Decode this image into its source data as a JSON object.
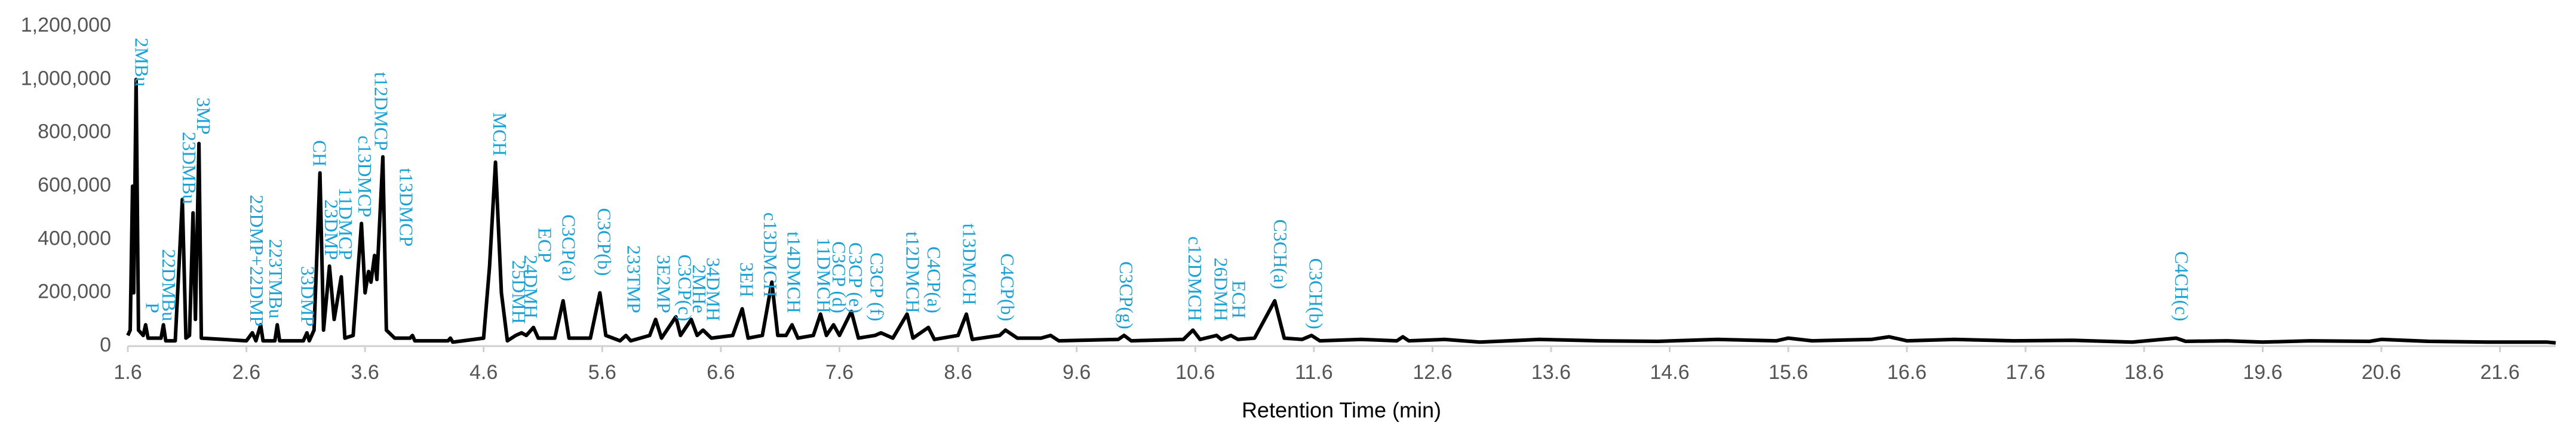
{
  "chart_data": {
    "type": "line",
    "x_label": "Retention Time (min)",
    "x": [
      1.6,
      1.62,
      1.64,
      1.65,
      1.67,
      1.69,
      1.73,
      1.75,
      1.77,
      1.88,
      1.9,
      1.92,
      2.0,
      2.06,
      2.09,
      2.12,
      2.15,
      2.17,
      2.2,
      2.22,
      2.6,
      2.65,
      2.68,
      2.72,
      2.74,
      2.84,
      2.86,
      2.88,
      3.08,
      3.11,
      3.13,
      3.17,
      3.22,
      3.25,
      3.3,
      3.34,
      3.4,
      3.43,
      3.5,
      3.57,
      3.6,
      3.63,
      3.65,
      3.68,
      3.7,
      3.75,
      3.78,
      3.85,
      3.98,
      4.0,
      4.02,
      4.3,
      4.32,
      4.34,
      4.6,
      4.65,
      4.7,
      4.75,
      4.8,
      4.87,
      4.92,
      4.96,
      5.02,
      5.06,
      5.2,
      5.27,
      5.32,
      5.5,
      5.58,
      5.63,
      5.75,
      5.8,
      5.84,
      6.0,
      6.05,
      6.1,
      6.22,
      6.26,
      6.35,
      6.4,
      6.45,
      6.52,
      6.7,
      6.78,
      6.83,
      6.95,
      7.03,
      7.08,
      7.15,
      7.2,
      7.25,
      7.38,
      7.44,
      7.49,
      7.55,
      7.6,
      7.7,
      7.76,
      7.9,
      7.95,
      8.05,
      8.17,
      8.22,
      8.35,
      8.4,
      8.6,
      8.67,
      8.72,
      8.95,
      9.0,
      9.1,
      9.3,
      9.38,
      9.45,
      9.95,
      10.0,
      10.06,
      10.5,
      10.58,
      10.64,
      10.78,
      10.82,
      10.9,
      10.96,
      11.1,
      11.27,
      11.35,
      11.5,
      11.58,
      11.65,
      12.0,
      12.3,
      12.35,
      12.4,
      12.7,
      13.0,
      13.5,
      14.0,
      14.5,
      15.0,
      15.5,
      15.6,
      15.8,
      16.3,
      16.45,
      16.6,
      17.0,
      17.5,
      18.0,
      18.5,
      18.87,
      18.95,
      19.3,
      19.6,
      20.0,
      20.5,
      20.6,
      21.0,
      21.5,
      22.0,
      22.07
    ],
    "series": [
      {
        "color": "#000000",
        "values": [
          40000,
          60000,
          600000,
          200000,
          1000000,
          60000,
          40000,
          80000,
          30000,
          30000,
          80000,
          20000,
          20000,
          550000,
          30000,
          40000,
          500000,
          100000,
          760000,
          30000,
          20000,
          50000,
          20000,
          80000,
          20000,
          20000,
          80000,
          20000,
          20000,
          50000,
          20000,
          60000,
          650000,
          60000,
          300000,
          100000,
          260000,
          30000,
          40000,
          460000,
          200000,
          280000,
          240000,
          340000,
          250000,
          710000,
          60000,
          30000,
          30000,
          40000,
          20000,
          20000,
          30000,
          15000,
          30000,
          300000,
          690000,
          200000,
          20000,
          40000,
          50000,
          40000,
          70000,
          30000,
          30000,
          170000,
          30000,
          30000,
          200000,
          40000,
          20000,
          40000,
          20000,
          40000,
          100000,
          30000,
          110000,
          40000,
          100000,
          40000,
          60000,
          30000,
          40000,
          140000,
          30000,
          40000,
          240000,
          40000,
          40000,
          80000,
          30000,
          40000,
          120000,
          40000,
          80000,
          40000,
          130000,
          30000,
          40000,
          50000,
          30000,
          120000,
          30000,
          70000,
          25000,
          40000,
          120000,
          25000,
          40000,
          60000,
          30000,
          30000,
          40000,
          20000,
          25000,
          40000,
          20000,
          25000,
          60000,
          25000,
          40000,
          25000,
          40000,
          25000,
          30000,
          170000,
          30000,
          25000,
          40000,
          20000,
          25000,
          20000,
          35000,
          20000,
          25000,
          15000,
          25000,
          20000,
          18000,
          25000,
          20000,
          30000,
          20000,
          25000,
          35000,
          20000,
          25000,
          20000,
          22000,
          15000,
          30000,
          18000,
          20000,
          15000,
          20000,
          18000,
          25000,
          18000,
          15000,
          15000,
          12000
        ]
      }
    ],
    "xlim": [
      1.6,
      22.07
    ],
    "xticks": [
      1.6,
      2.6,
      3.6,
      4.6,
      5.6,
      6.6,
      7.6,
      8.6,
      9.6,
      10.6,
      11.6,
      12.6,
      13.6,
      14.6,
      15.6,
      16.6,
      17.6,
      18.6,
      19.6,
      20.6,
      21.6
    ],
    "ylim": [
      0,
      1200000
    ],
    "yticks": [
      0,
      {
        "value": 200000,
        "label": "200,000"
      },
      {
        "value": 400000,
        "label": "400,000"
      },
      {
        "value": 600000,
        "label": "600,000"
      },
      {
        "value": 800000,
        "label": "800,000"
      },
      {
        "value": 1000000,
        "label": "1,000,000"
      },
      {
        "value": 1200000,
        "label": "1,200,000"
      }
    ],
    "annotation_color": "#1ba1d4",
    "annotations": [
      {
        "label": "2MBu",
        "x": 1.7,
        "y": 960000
      },
      {
        "label": "P",
        "x": 1.79,
        "y": 110000
      },
      {
        "label": "22DMBu",
        "x": 1.93,
        "y": 80000
      },
      {
        "label": "23DMBu",
        "x": 2.1,
        "y": 520000
      },
      {
        "label": "3MP",
        "x": 2.22,
        "y": 780000
      },
      {
        "label": "22DMP+22DMP",
        "x": 2.67,
        "y": 60000
      },
      {
        "label": "223TMBu",
        "x": 2.83,
        "y": 90000
      },
      {
        "label": "33DMP",
        "x": 3.1,
        "y": 60000
      },
      {
        "label": "CH",
        "x": 3.2,
        "y": 660000
      },
      {
        "label": "23DMP",
        "x": 3.3,
        "y": 310000
      },
      {
        "label": "11DMCP",
        "x": 3.42,
        "y": 310000
      },
      {
        "label": "c13DMCP",
        "x": 3.58,
        "y": 470000
      },
      {
        "label": "t12DMCP",
        "x": 3.72,
        "y": 720000
      },
      {
        "label": "t13DMCP",
        "x": 3.93,
        "y": 360000
      },
      {
        "label": "MCH",
        "x": 4.72,
        "y": 700000
      },
      {
        "label": "25DMH",
        "x": 4.88,
        "y": 70000
      },
      {
        "label": "24DMH",
        "x": 4.98,
        "y": 90000
      },
      {
        "label": "ECP",
        "x": 5.1,
        "y": 300000
      },
      {
        "label": "C3CP(a)",
        "x": 5.3,
        "y": 230000
      },
      {
        "label": "C3CP(b)",
        "x": 5.6,
        "y": 250000
      },
      {
        "label": "233TMP",
        "x": 5.85,
        "y": 110000
      },
      {
        "label": "3E2MP",
        "x": 6.1,
        "y": 110000
      },
      {
        "label": "C3CP(c)",
        "x": 6.28,
        "y": 80000
      },
      {
        "label": "2MHe",
        "x": 6.4,
        "y": 110000
      },
      {
        "label": "34DMH",
        "x": 6.52,
        "y": 80000
      },
      {
        "label": "3EH",
        "x": 6.8,
        "y": 170000
      },
      {
        "label": "c13DMCH",
        "x": 7.0,
        "y": 170000
      },
      {
        "label": "t14DMCH",
        "x": 7.2,
        "y": 110000
      },
      {
        "label": "11DMCH",
        "x": 7.45,
        "y": 110000
      },
      {
        "label": "C3CP (d)",
        "x": 7.58,
        "y": 110000
      },
      {
        "label": "C3CP (e)",
        "x": 7.72,
        "y": 110000
      },
      {
        "label": "C3CP (f)",
        "x": 7.9,
        "y": 80000
      },
      {
        "label": "t12DMCH",
        "x": 8.2,
        "y": 110000
      },
      {
        "label": "C4CP(a)",
        "x": 8.38,
        "y": 110000
      },
      {
        "label": "t13DMCH",
        "x": 8.68,
        "y": 140000
      },
      {
        "label": "C4CP(b)",
        "x": 9.0,
        "y": 80000
      },
      {
        "label": "C3CP(g)",
        "x": 10.0,
        "y": 50000
      },
      {
        "label": "c12DMCH",
        "x": 10.58,
        "y": 80000
      },
      {
        "label": "26DMH",
        "x": 10.8,
        "y": 80000
      },
      {
        "label": "ECH",
        "x": 10.95,
        "y": 90000
      },
      {
        "label": "C3CH(a)",
        "x": 11.3,
        "y": 200000
      },
      {
        "label": "C3CH(b)",
        "x": 11.6,
        "y": 50000
      },
      {
        "label": "C4CH(c)",
        "x": 18.9,
        "y": 80000
      }
    ]
  }
}
